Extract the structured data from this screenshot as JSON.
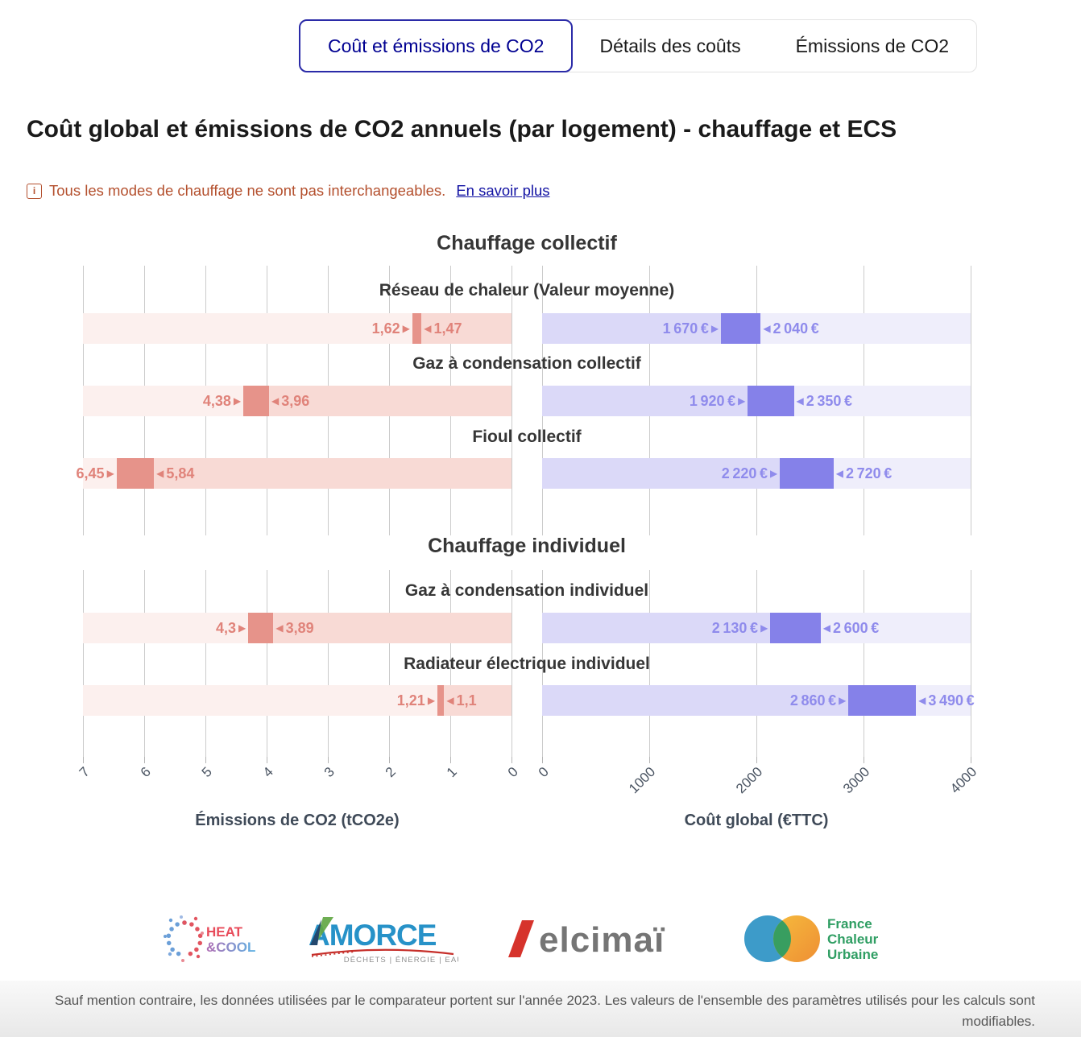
{
  "tabs": [
    {
      "name": "tab-cout-et-emissions-de-co2",
      "label": "Coût et émissions de CO2",
      "active": true
    },
    {
      "name": "tab-details-des-couts",
      "label": "Détails des coûts",
      "active": false
    },
    {
      "name": "tab-emissions-de-co2",
      "label": "Émissions de CO2",
      "active": false
    }
  ],
  "page_title": "Coût global et émissions de CO2 annuels (par logement) - chauffage et ECS",
  "notice": {
    "text": "Tous les modes de chauffage ne sont pas interchangeables.",
    "link": "En savoir plus"
  },
  "chart_data": {
    "type": "bar",
    "subtype": "horizontal-range-bars-dual-axis",
    "sections": [
      {
        "title": "Chauffage collectif",
        "rows": [
          {
            "label": "Réseau de chaleur (Valeur moyenne)",
            "co2": {
              "high": 1.62,
              "low": 1.47,
              "high_label": "1,62",
              "low_label": "1,47"
            },
            "cost": {
              "low": 1670,
              "high": 2040,
              "low_label": "1 670 €",
              "high_label": "2 040 €"
            }
          },
          {
            "label": "Gaz à condensation collectif",
            "co2": {
              "high": 4.38,
              "low": 3.96,
              "high_label": "4,38",
              "low_label": "3,96"
            },
            "cost": {
              "low": 1920,
              "high": 2350,
              "low_label": "1 920 €",
              "high_label": "2 350 €"
            }
          },
          {
            "label": "Fioul collectif",
            "co2": {
              "high": 6.45,
              "low": 5.84,
              "high_label": "6,45",
              "low_label": "5,84"
            },
            "cost": {
              "low": 2220,
              "high": 2720,
              "low_label": "2 220 €",
              "high_label": "2 720 €"
            }
          }
        ]
      },
      {
        "title": "Chauffage individuel",
        "rows": [
          {
            "label": "Gaz à condensation individuel",
            "co2": {
              "high": 4.3,
              "low": 3.89,
              "high_label": "4,3",
              "low_label": "3,89"
            },
            "cost": {
              "low": 2130,
              "high": 2600,
              "low_label": "2 130 €",
              "high_label": "2 600 €"
            }
          },
          {
            "label": "Radiateur électrique individuel",
            "co2": {
              "high": 1.21,
              "low": 1.1,
              "high_label": "1,21",
              "low_label": "1,1"
            },
            "cost": {
              "low": 2860,
              "high": 3490,
              "low_label": "2 860 €",
              "high_label": "3 490 €"
            }
          }
        ]
      }
    ],
    "co2_axis": {
      "title": "Émissions de CO2 (tCO2e)",
      "min": 0,
      "max": 7,
      "reversed": true,
      "ticks": [
        "7",
        "6",
        "5",
        "4",
        "3",
        "2",
        "1",
        "0"
      ]
    },
    "cost_axis": {
      "title": "Coût global (€TTC)",
      "min": 0,
      "max": 4000,
      "ticks": [
        "0",
        "1000",
        "2000",
        "3000",
        "4000"
      ]
    },
    "grid": true,
    "legend": "none",
    "colors": {
      "co2_solid": "#e6938a",
      "co2_mid": "#f8dad5",
      "co2_light": "#fcf0ee",
      "co2_text": "#e0837a",
      "cost_solid": "#8581e9",
      "cost_mid": "#dbd9f8",
      "cost_light": "#efeefb",
      "cost_text": "#8f8bec",
      "gridline": "#cbcbcb"
    }
  },
  "logos": [
    {
      "line1": "HEAT",
      "line2": "&COOL"
    },
    {
      "name": "AMORCE",
      "tagline": "DÉCHETS | ÉNERGIE | EAU"
    },
    {
      "name": "elcimaï"
    },
    {
      "name": "France Chaleur Urbaine",
      "lines": [
        "France",
        "Chaleur",
        "Urbaine"
      ]
    }
  ],
  "footer": {
    "text": "Sauf mention contraire, les données utilisées par le comparateur portent sur l'année 2023. Les valeurs de l'ensemble des paramètres utilisés pour les calculs sont modifiables."
  }
}
